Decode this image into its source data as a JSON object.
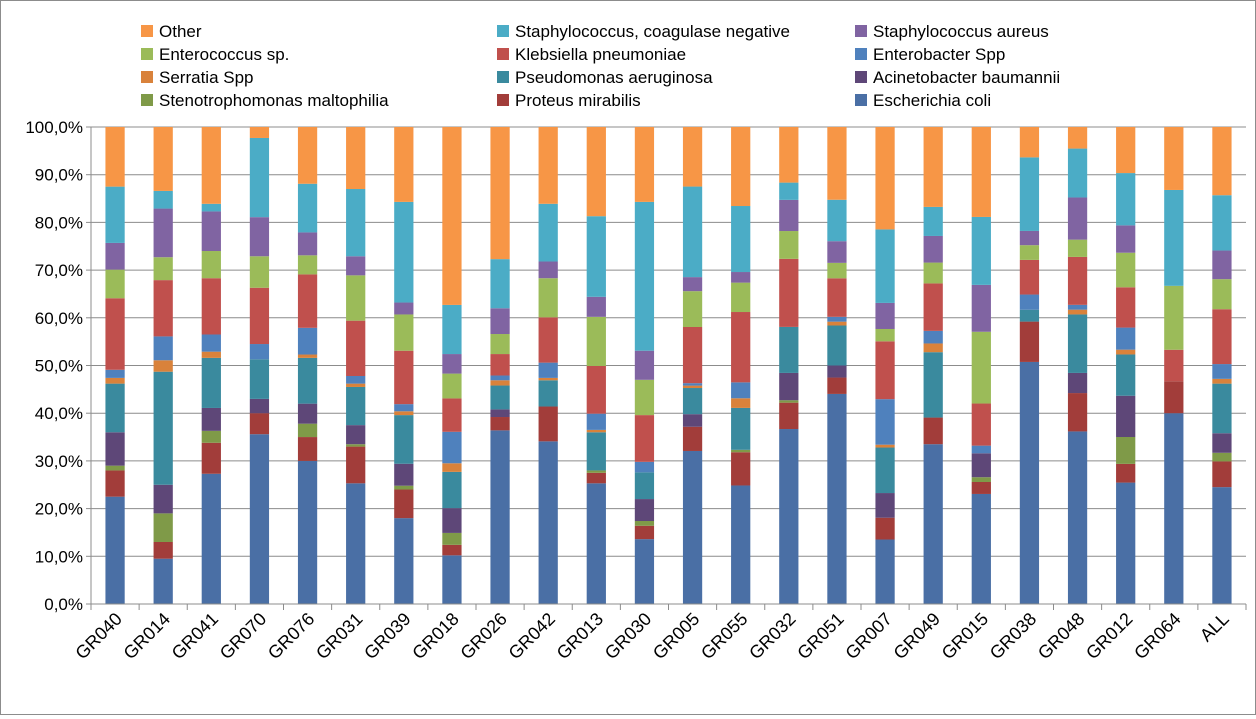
{
  "chart_data": {
    "type": "bar",
    "stacked": true,
    "percent": true,
    "legend_position": "top",
    "grid": true,
    "ylim": [
      0,
      100
    ],
    "yticks": [
      "0,0%",
      "10,0%",
      "20,0%",
      "30,0%",
      "40,0%",
      "50,0%",
      "60,0%",
      "70,0%",
      "80,0%",
      "90,0%",
      "100,0%"
    ],
    "categories": [
      "GR040",
      "GR014",
      "GR041",
      "GR070",
      "GR076",
      "GR031",
      "GR039",
      "GR018",
      "GR026",
      "GR042",
      "GR013",
      "GR030",
      "GR005",
      "GR055",
      "GR032",
      "GR051",
      "GR007",
      "GR049",
      "GR015",
      "GR038",
      "GR048",
      "GR012",
      "GR064",
      "ALL"
    ],
    "legend_order": [
      "Other",
      "Staphylococcus, coagulase negative",
      "Staphylococcus aureus",
      "Enterococcus sp.",
      "Klebsiella pneumoniae",
      "Enterobacter Spp",
      "Serratia Spp",
      "Pseudomonas aeruginosa",
      "Acinetobacter baumannii",
      "Stenotrophomonas maltophilia",
      "Proteus mirabilis",
      "Escherichia coli"
    ],
    "series": [
      {
        "name": "Escherichia coli",
        "color": "#4A6FA5",
        "values": [
          22.5,
          9.5,
          27.3,
          35.6,
          30.0,
          25.3,
          18.0,
          10.2,
          36.4,
          34.1,
          25.3,
          13.6,
          31.6,
          24.6,
          36.5,
          43.6,
          13.6,
          33.0,
          23.0,
          51.0,
          36.0,
          25.3,
          40.0,
          24.5
        ]
      },
      {
        "name": "Proteus mirabilis",
        "color": "#A23D3A",
        "values": [
          5.5,
          3.5,
          6.5,
          4.4,
          5.0,
          7.7,
          6.0,
          2.2,
          2.8,
          7.3,
          2.2,
          2.8,
          5.0,
          6.9,
          5.5,
          3.4,
          4.6,
          5.5,
          2.5,
          8.5,
          8.0,
          3.9,
          6.7,
          5.4
        ]
      },
      {
        "name": "Stenotrophomonas maltophilia",
        "color": "#7F9A48",
        "values": [
          1.0,
          6.0,
          2.5,
          0.0,
          2.8,
          0.5,
          0.8,
          2.5,
          0.0,
          0.0,
          0.5,
          1.0,
          0.0,
          0.5,
          0.5,
          0.0,
          0.0,
          0.0,
          1.0,
          0.0,
          0.0,
          5.6,
          0.0,
          1.8
        ]
      },
      {
        "name": "Acinetobacter baumannii",
        "color": "#5E4778",
        "values": [
          7.0,
          6.0,
          4.8,
          3.0,
          4.2,
          4.0,
          4.6,
          5.2,
          1.6,
          0.0,
          0.0,
          4.6,
          2.6,
          0.0,
          5.7,
          2.5,
          5.2,
          0.0,
          5.0,
          0.0,
          4.2,
          8.6,
          0.0,
          4.1
        ]
      },
      {
        "name": "Pseudomonas aeruginosa",
        "color": "#3A8A9E",
        "values": [
          10.2,
          23.7,
          10.5,
          8.3,
          9.6,
          8.0,
          10.2,
          7.6,
          5.0,
          5.5,
          8.0,
          5.6,
          5.4,
          8.7,
          9.6,
          8.3,
          9.6,
          13.5,
          0.0,
          2.5,
          12.2,
          8.6,
          0.0,
          10.4
        ]
      },
      {
        "name": "Serratia Spp",
        "color": "#D9823B",
        "values": [
          1.2,
          2.4,
          1.3,
          0.0,
          0.7,
          0.7,
          0.8,
          1.8,
          1.1,
          0.5,
          0.5,
          0.0,
          0.5,
          2.0,
          0.0,
          0.8,
          0.6,
          1.8,
          0.0,
          0.0,
          1.0,
          1.0,
          0.0,
          1.0
        ]
      },
      {
        "name": "Enterobacter Spp",
        "color": "#4F81BD",
        "values": [
          1.7,
          5.0,
          3.6,
          3.2,
          5.6,
          1.6,
          1.5,
          6.6,
          1.0,
          3.2,
          3.4,
          2.2,
          0.5,
          3.3,
          0.0,
          1.0,
          9.6,
          2.6,
          1.6,
          3.2,
          1.0,
          4.6,
          0.0,
          3.1
        ]
      },
      {
        "name": "Klebsiella pneumoniae",
        "color": "#C0504D",
        "values": [
          15.0,
          11.8,
          11.8,
          11.8,
          11.2,
          11.6,
          11.2,
          7.0,
          4.5,
          9.5,
          10.0,
          9.8,
          11.6,
          14.6,
          14.2,
          8.0,
          12.2,
          9.8,
          8.8,
          7.3,
          10.0,
          8.4,
          6.6,
          11.5
        ]
      },
      {
        "name": "Enterococcus sp.",
        "color": "#9BBB59",
        "values": [
          6.0,
          4.8,
          5.7,
          6.6,
          4.0,
          9.5,
          7.6,
          5.2,
          4.2,
          8.2,
          10.3,
          7.4,
          7.4,
          6.1,
          5.8,
          3.2,
          2.6,
          4.3,
          15.0,
          3.1,
          3.6,
          7.2,
          13.4,
          6.3
        ]
      },
      {
        "name": "Staphylococcus aureus",
        "color": "#8064A2",
        "values": [
          5.6,
          10.2,
          8.3,
          8.2,
          4.8,
          4.0,
          2.5,
          4.1,
          5.4,
          3.5,
          4.2,
          6.1,
          2.9,
          2.2,
          6.5,
          4.5,
          5.5,
          5.5,
          9.8,
          3.0,
          8.8,
          5.7,
          0.0,
          6.0
        ]
      },
      {
        "name": "Staphylococcus, coagulase negative",
        "color": "#4BACC6",
        "values": [
          11.8,
          3.7,
          1.6,
          16.6,
          10.2,
          14.1,
          21.1,
          10.3,
          10.3,
          12.1,
          16.9,
          31.2,
          18.7,
          13.7,
          3.6,
          8.6,
          15.5,
          6.0,
          14.2,
          15.5,
          10.2,
          10.9,
          20.1,
          11.6
        ]
      },
      {
        "name": "Other",
        "color": "#F79646",
        "values": [
          12.5,
          13.4,
          16.1,
          2.3,
          11.9,
          13.0,
          15.7,
          37.3,
          27.7,
          16.1,
          18.7,
          15.7,
          12.3,
          16.4,
          11.6,
          15.1,
          21.6,
          16.5,
          18.8,
          6.4,
          4.5,
          9.6,
          13.2,
          14.3
        ]
      }
    ]
  }
}
